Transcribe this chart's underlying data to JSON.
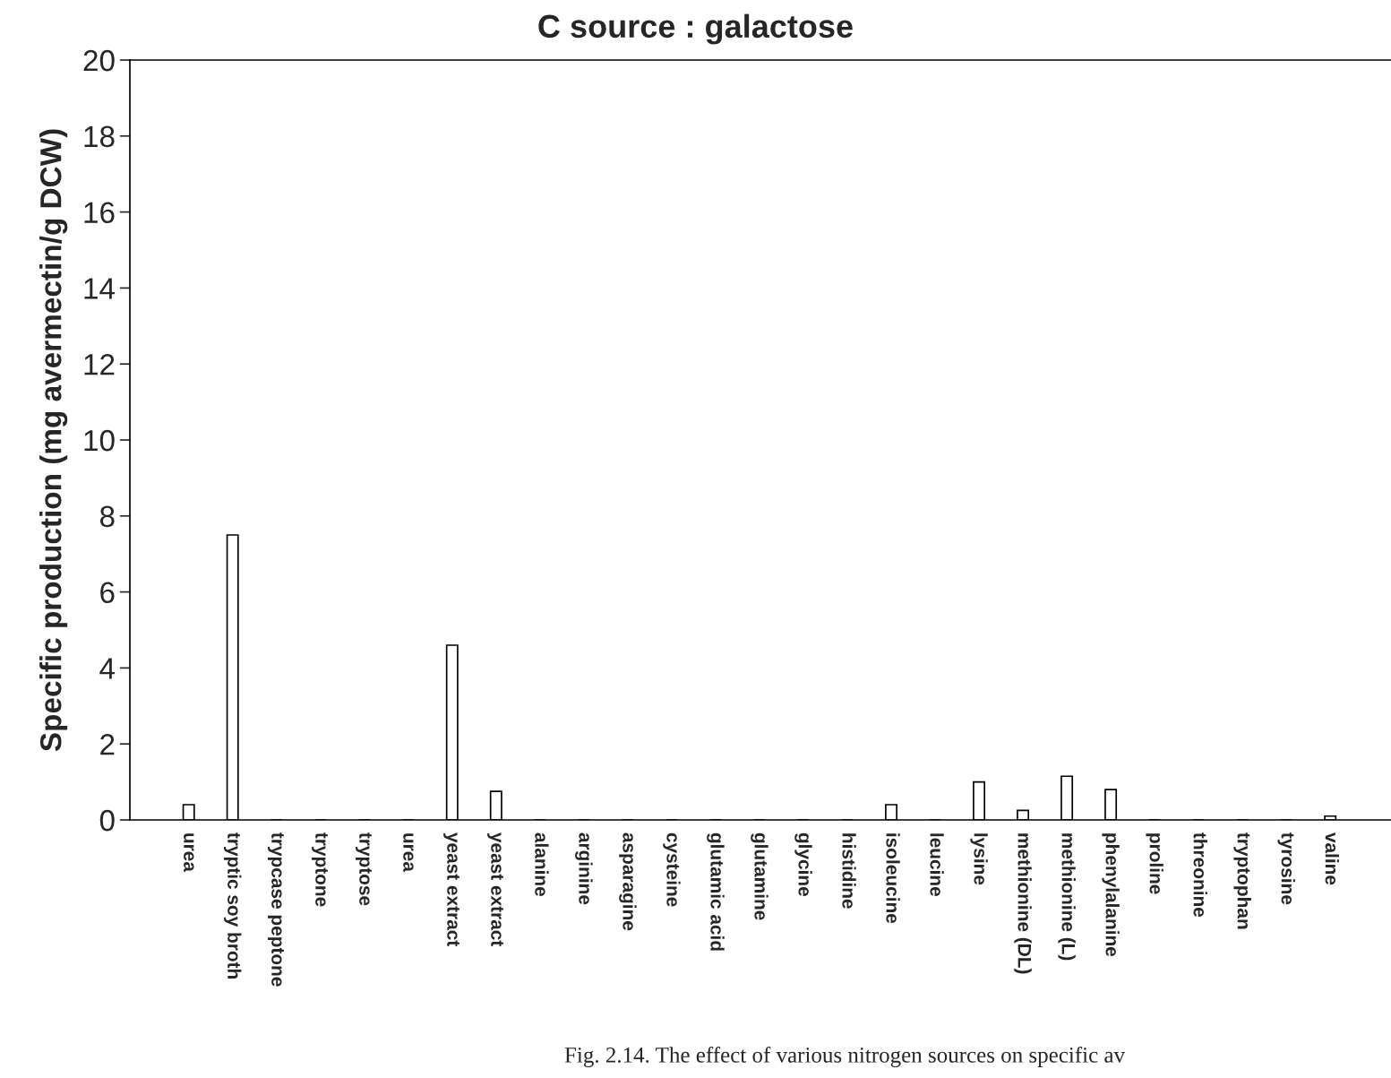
{
  "chart_data": {
    "type": "bar",
    "title": "C source : galactose",
    "ylabel": "Specific production (mg avermectin/g DCW)",
    "categories": [
      "urea",
      "tryptic soy broth",
      "trypcase peptone",
      "tryptone",
      "tryptose",
      "urea",
      "yeast extract",
      "yeast extract",
      "alanine",
      "arginine",
      "asparagine",
      "cysteine",
      "glutamic acid",
      "glutamine",
      "glycine",
      "histidine",
      "isoleucine",
      "leucine",
      "lysine",
      "methionine (DL)",
      "methionine (L)",
      "phenylalanine",
      "proline",
      "threonine",
      "tryptophan",
      "tyrosine",
      "valine"
    ],
    "values": [
      0.4,
      7.5,
      0,
      0,
      0,
      0,
      4.6,
      0.75,
      0,
      0,
      0,
      0,
      0,
      0,
      0,
      0,
      0.4,
      0,
      1.0,
      0.25,
      1.15,
      0.8,
      0,
      0,
      0,
      0,
      0.1
    ],
    "color": "#ffffff",
    "ylim": [
      0,
      20
    ],
    "yticks": [
      0,
      2,
      4,
      6,
      8,
      10,
      12,
      14,
      16,
      18,
      20
    ],
    "grid": false,
    "annotations": [
      "Fig. 2.14. The effect of various nitrogen sources on specific av"
    ]
  }
}
